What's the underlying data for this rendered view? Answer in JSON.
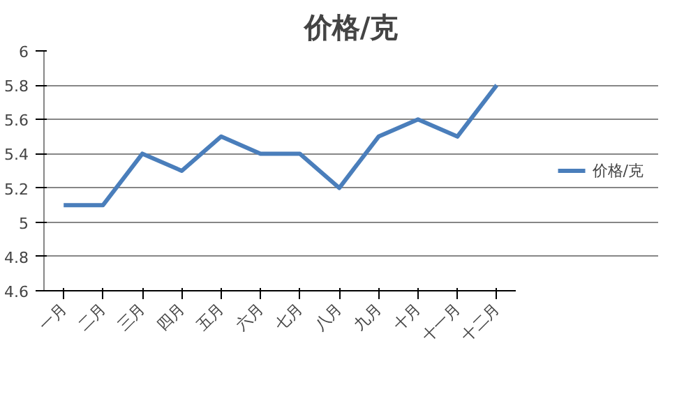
{
  "chart_data": {
    "type": "line",
    "title": "价格/克",
    "categories": [
      "一月",
      "二月",
      "三月",
      "四月",
      "五月",
      "六月",
      "七月",
      "八月",
      "九月",
      "十月",
      "十一月",
      "十二月"
    ],
    "series": [
      {
        "name": "价格/克",
        "color": "#4a7ebb",
        "values": [
          5.1,
          5.1,
          5.4,
          5.3,
          5.5,
          5.4,
          5.4,
          5.2,
          5.5,
          5.6,
          5.5,
          5.8
        ]
      }
    ],
    "ylim": [
      4.6,
      6
    ],
    "yticks": [
      4.6,
      4.8,
      5,
      5.2,
      5.4,
      5.6,
      5.8,
      6
    ],
    "grid": "y",
    "legend": "right",
    "marker": "none",
    "line_style": "solid"
  }
}
